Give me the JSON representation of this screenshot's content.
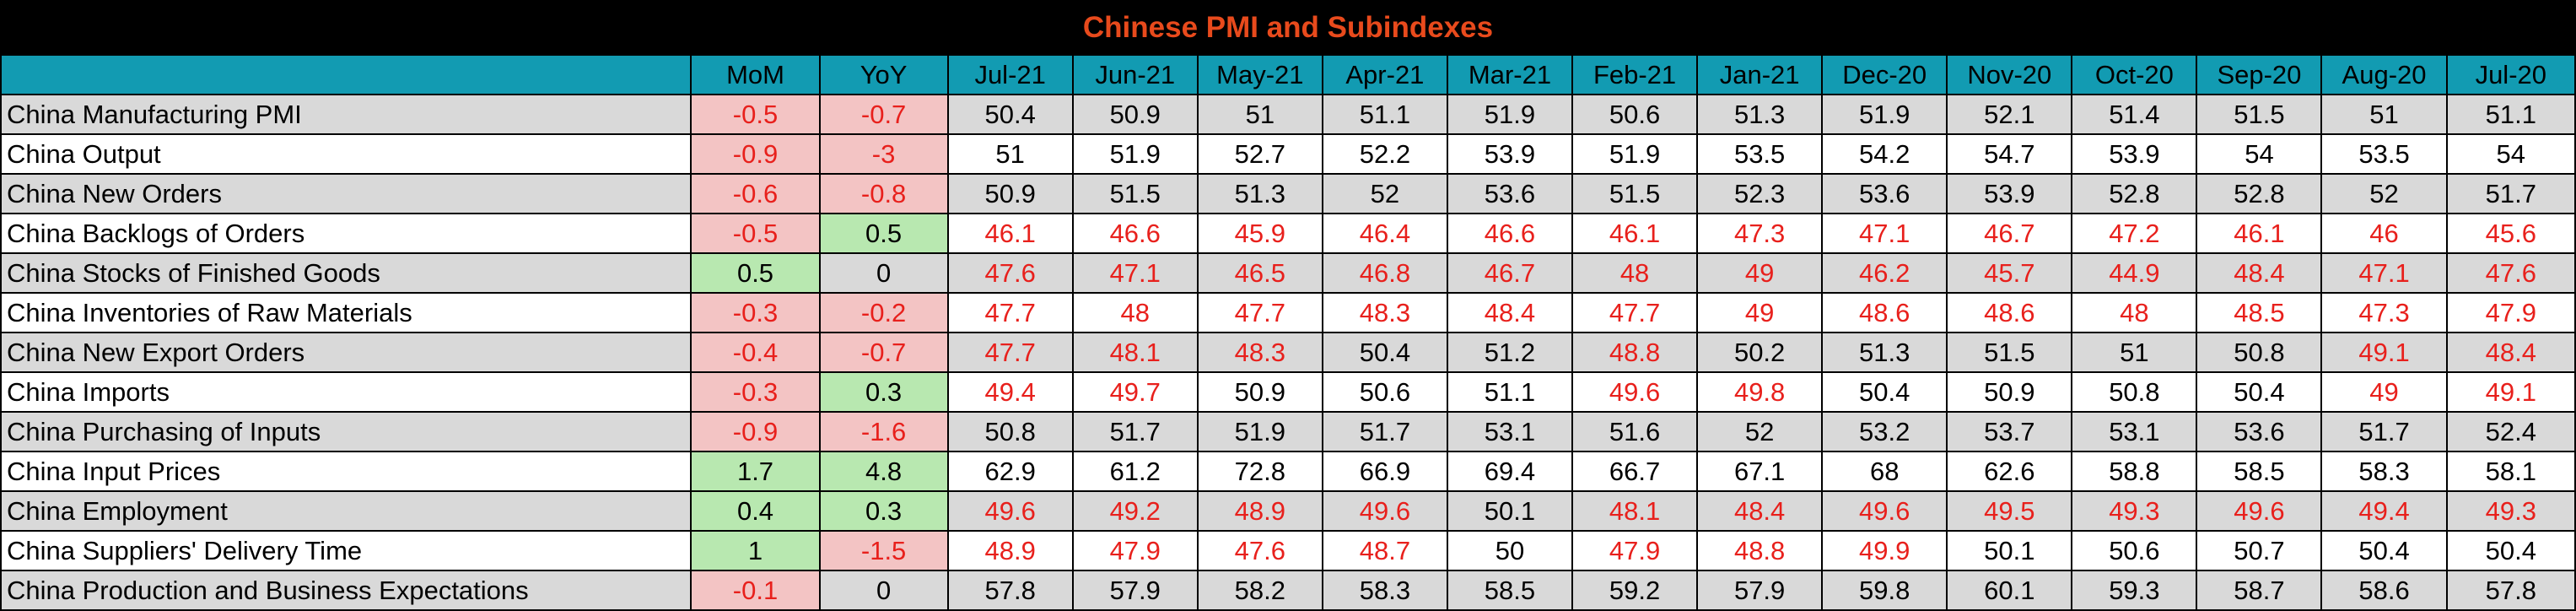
{
  "chart_data": {
    "type": "table",
    "title": "Chinese PMI and Subindexes",
    "columns": [
      "",
      "MoM",
      "YoY",
      "Jul-21",
      "Jun-21",
      "May-21",
      "Apr-21",
      "Mar-21",
      "Feb-21",
      "Jan-21",
      "Dec-20",
      "Nov-20",
      "Oct-20",
      "Sep-20",
      "Aug-20",
      "Jul-20"
    ],
    "rows": [
      {
        "label": "China Manufacturing PMI",
        "mom": "-0.5",
        "yoy": "-0.7",
        "values": [
          "50.4",
          "50.9",
          "51",
          "51.1",
          "51.9",
          "50.6",
          "51.3",
          "51.9",
          "52.1",
          "51.4",
          "51.5",
          "51",
          "51.1"
        ]
      },
      {
        "label": "China Output",
        "mom": "-0.9",
        "yoy": "-3",
        "values": [
          "51",
          "51.9",
          "52.7",
          "52.2",
          "53.9",
          "51.9",
          "53.5",
          "54.2",
          "54.7",
          "53.9",
          "54",
          "53.5",
          "54"
        ]
      },
      {
        "label": "China New Orders",
        "mom": "-0.6",
        "yoy": "-0.8",
        "values": [
          "50.9",
          "51.5",
          "51.3",
          "52",
          "53.6",
          "51.5",
          "52.3",
          "53.6",
          "53.9",
          "52.8",
          "52.8",
          "52",
          "51.7"
        ]
      },
      {
        "label": "China Backlogs of Orders",
        "mom": "-0.5",
        "yoy": "0.5",
        "values": [
          "46.1",
          "46.6",
          "45.9",
          "46.4",
          "46.6",
          "46.1",
          "47.3",
          "47.1",
          "46.7",
          "47.2",
          "46.1",
          "46",
          "45.6"
        ]
      },
      {
        "label": "China Stocks of Finished Goods",
        "mom": "0.5",
        "yoy": "0",
        "values": [
          "47.6",
          "47.1",
          "46.5",
          "46.8",
          "46.7",
          "48",
          "49",
          "46.2",
          "45.7",
          "44.9",
          "48.4",
          "47.1",
          "47.6"
        ]
      },
      {
        "label": "China Inventories of Raw Materials",
        "mom": "-0.3",
        "yoy": "-0.2",
        "values": [
          "47.7",
          "48",
          "47.7",
          "48.3",
          "48.4",
          "47.7",
          "49",
          "48.6",
          "48.6",
          "48",
          "48.5",
          "47.3",
          "47.9"
        ]
      },
      {
        "label": "China New Export Orders",
        "mom": "-0.4",
        "yoy": "-0.7",
        "values": [
          "47.7",
          "48.1",
          "48.3",
          "50.4",
          "51.2",
          "48.8",
          "50.2",
          "51.3",
          "51.5",
          "51",
          "50.8",
          "49.1",
          "48.4"
        ]
      },
      {
        "label": "China Imports",
        "mom": "-0.3",
        "yoy": "0.3",
        "values": [
          "49.4",
          "49.7",
          "50.9",
          "50.6",
          "51.1",
          "49.6",
          "49.8",
          "50.4",
          "50.9",
          "50.8",
          "50.4",
          "49",
          "49.1"
        ]
      },
      {
        "label": "China Purchasing of Inputs",
        "mom": "-0.9",
        "yoy": "-1.6",
        "values": [
          "50.8",
          "51.7",
          "51.9",
          "51.7",
          "53.1",
          "51.6",
          "52",
          "53.2",
          "53.7",
          "53.1",
          "53.6",
          "51.7",
          "52.4"
        ]
      },
      {
        "label": "China Input Prices",
        "mom": "1.7",
        "yoy": "4.8",
        "values": [
          "62.9",
          "61.2",
          "72.8",
          "66.9",
          "69.4",
          "66.7",
          "67.1",
          "68",
          "62.6",
          "58.8",
          "58.5",
          "58.3",
          "58.1"
        ]
      },
      {
        "label": "China Employment",
        "mom": "0.4",
        "yoy": "0.3",
        "values": [
          "49.6",
          "49.2",
          "48.9",
          "49.6",
          "50.1",
          "48.1",
          "48.4",
          "49.6",
          "49.5",
          "49.3",
          "49.6",
          "49.4",
          "49.3"
        ]
      },
      {
        "label": "China Suppliers' Delivery Time",
        "mom": "1",
        "yoy": "-1.5",
        "values": [
          "48.9",
          "47.9",
          "47.6",
          "48.7",
          "50",
          "47.9",
          "48.8",
          "49.9",
          "50.1",
          "50.6",
          "50.7",
          "50.4",
          "50.4"
        ]
      },
      {
        "label": "China Production and Business Expectations",
        "mom": "-0.1",
        "yoy": "0",
        "values": [
          "57.8",
          "57.9",
          "58.2",
          "58.3",
          "58.5",
          "59.2",
          "57.9",
          "59.8",
          "60.1",
          "59.3",
          "58.7",
          "58.6",
          "57.8"
        ]
      }
    ]
  },
  "colors": {
    "title_bg": "#000000",
    "title_text": "#e84a1c",
    "header_bg": "#129bb2",
    "band_bg": "#d9d9d9",
    "positive_bg": "#b8e8b0",
    "negative_bg": "#f3c4c4",
    "below_50_text": "#e8201c"
  }
}
